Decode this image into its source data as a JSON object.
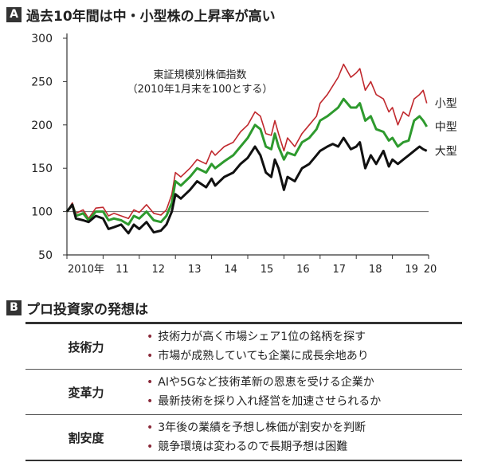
{
  "section_a": {
    "letter": "A",
    "title": "過去10年間は中・小型株の上昇率が高い"
  },
  "section_b": {
    "letter": "B",
    "title": "プロ投資家の発想は"
  },
  "chart_data": {
    "type": "line",
    "title": "東証規模別株価指数",
    "subtitle": "（2010年1月末を100とする）",
    "xlabel": "",
    "ylabel": "",
    "xlim": [
      2010,
      2020
    ],
    "ylim": [
      50,
      300
    ],
    "x_ticks": [
      {
        "x": 2010.0,
        "label": "2010年"
      },
      {
        "x": 2011.0,
        "label": "11"
      },
      {
        "x": 2012.0,
        "label": "12"
      },
      {
        "x": 2013.0,
        "label": "13"
      },
      {
        "x": 2014.0,
        "label": "14"
      },
      {
        "x": 2015.0,
        "label": "15"
      },
      {
        "x": 2016.0,
        "label": "16"
      },
      {
        "x": 2017.0,
        "label": "17"
      },
      {
        "x": 2018.0,
        "label": "18"
      },
      {
        "x": 2019.0,
        "label": "19"
      },
      {
        "x": 2020.0,
        "label": "20"
      }
    ],
    "y_ticks": [
      50,
      100,
      150,
      200,
      250,
      300
    ],
    "reference_line": 100,
    "grid": false,
    "series": [
      {
        "name": "小型",
        "color": "#c0282d",
        "x": [
          2010.0,
          2010.15,
          2010.25,
          2010.45,
          2010.6,
          2010.8,
          2011.0,
          2011.15,
          2011.3,
          2011.5,
          2011.7,
          2011.85,
          2012.0,
          2012.2,
          2012.4,
          2012.6,
          2012.75,
          2012.9,
          2013.0,
          2013.15,
          2013.4,
          2013.6,
          2013.85,
          2014.0,
          2014.1,
          2014.35,
          2014.6,
          2014.8,
          2015.0,
          2015.2,
          2015.35,
          2015.5,
          2015.65,
          2015.75,
          2015.85,
          2016.0,
          2016.1,
          2016.3,
          2016.5,
          2016.7,
          2016.9,
          2017.0,
          2017.2,
          2017.35,
          2017.5,
          2017.65,
          2017.85,
          2018.0,
          2018.1,
          2018.25,
          2018.4,
          2018.55,
          2018.75,
          2018.9,
          2019.0,
          2019.15,
          2019.3,
          2019.45,
          2019.6,
          2019.75,
          2019.85,
          2019.95
        ],
        "values": [
          100,
          110,
          98,
          102,
          92,
          104,
          105,
          95,
          98,
          95,
          92,
          102,
          99,
          108,
          98,
          96,
          102,
          120,
          145,
          140,
          150,
          160,
          155,
          170,
          165,
          175,
          180,
          192,
          200,
          215,
          210,
          190,
          188,
          205,
          190,
          170,
          185,
          175,
          190,
          200,
          210,
          225,
          235,
          245,
          255,
          270,
          255,
          260,
          265,
          240,
          250,
          235,
          230,
          215,
          220,
          200,
          215,
          210,
          230,
          235,
          240,
          225
        ]
      },
      {
        "name": "中型",
        "color": "#2e9a2e",
        "x": [
          2010.0,
          2010.15,
          2010.25,
          2010.45,
          2010.6,
          2010.8,
          2011.0,
          2011.15,
          2011.3,
          2011.5,
          2011.7,
          2011.85,
          2012.0,
          2012.2,
          2012.4,
          2012.6,
          2012.75,
          2012.9,
          2013.0,
          2013.15,
          2013.4,
          2013.6,
          2013.85,
          2014.0,
          2014.1,
          2014.35,
          2014.6,
          2014.8,
          2015.0,
          2015.2,
          2015.35,
          2015.5,
          2015.65,
          2015.75,
          2015.85,
          2016.0,
          2016.1,
          2016.3,
          2016.5,
          2016.7,
          2016.9,
          2017.0,
          2017.2,
          2017.35,
          2017.5,
          2017.65,
          2017.85,
          2018.0,
          2018.1,
          2018.25,
          2018.4,
          2018.55,
          2018.75,
          2018.9,
          2019.0,
          2019.15,
          2019.3,
          2019.45,
          2019.6,
          2019.75,
          2019.85,
          2019.95
        ],
        "values": [
          100,
          108,
          95,
          98,
          90,
          100,
          100,
          90,
          92,
          90,
          85,
          95,
          92,
          100,
          90,
          88,
          95,
          110,
          135,
          130,
          140,
          150,
          145,
          155,
          150,
          158,
          165,
          175,
          185,
          200,
          195,
          175,
          172,
          190,
          175,
          160,
          168,
          165,
          180,
          185,
          195,
          205,
          210,
          215,
          220,
          230,
          220,
          220,
          225,
          205,
          210,
          195,
          192,
          182,
          185,
          175,
          180,
          182,
          205,
          210,
          205,
          198
        ]
      },
      {
        "name": "大型",
        "color": "#111111",
        "x": [
          2010.0,
          2010.15,
          2010.25,
          2010.45,
          2010.6,
          2010.8,
          2011.0,
          2011.15,
          2011.3,
          2011.5,
          2011.7,
          2011.85,
          2012.0,
          2012.2,
          2012.4,
          2012.6,
          2012.75,
          2012.9,
          2013.0,
          2013.15,
          2013.4,
          2013.6,
          2013.85,
          2014.0,
          2014.1,
          2014.35,
          2014.6,
          2014.8,
          2015.0,
          2015.2,
          2015.35,
          2015.5,
          2015.65,
          2015.75,
          2015.85,
          2016.0,
          2016.1,
          2016.3,
          2016.5,
          2016.7,
          2016.9,
          2017.0,
          2017.2,
          2017.35,
          2017.5,
          2017.65,
          2017.85,
          2018.0,
          2018.1,
          2018.25,
          2018.4,
          2018.55,
          2018.75,
          2018.9,
          2019.0,
          2019.15,
          2019.3,
          2019.45,
          2019.6,
          2019.75,
          2019.85,
          2019.95
        ],
        "values": [
          100,
          108,
          92,
          90,
          88,
          95,
          92,
          80,
          82,
          85,
          75,
          85,
          80,
          88,
          76,
          78,
          85,
          100,
          120,
          115,
          125,
          135,
          128,
          138,
          130,
          140,
          145,
          155,
          162,
          175,
          165,
          145,
          140,
          160,
          150,
          125,
          140,
          135,
          150,
          155,
          165,
          170,
          175,
          178,
          175,
          185,
          172,
          175,
          180,
          150,
          165,
          155,
          170,
          152,
          160,
          155,
          160,
          165,
          170,
          175,
          172,
          170
        ]
      }
    ]
  },
  "table": {
    "rows": [
      {
        "category": "技術力",
        "points": [
          "技術力が高く市場シェア1位の銘柄を探す",
          "市場が成熟していても企業に成長余地あり"
        ]
      },
      {
        "category": "変革力",
        "points": [
          "AIや5Gなど技術革新の恩恵を受ける企業か",
          "最新技術を採り入れ経営を加速させられるか"
        ]
      },
      {
        "category": "割安度",
        "points": [
          "3年後の業績を予想し株価が割安かを判断",
          "競争環境は変わるので長期予想は困難"
        ]
      }
    ]
  }
}
